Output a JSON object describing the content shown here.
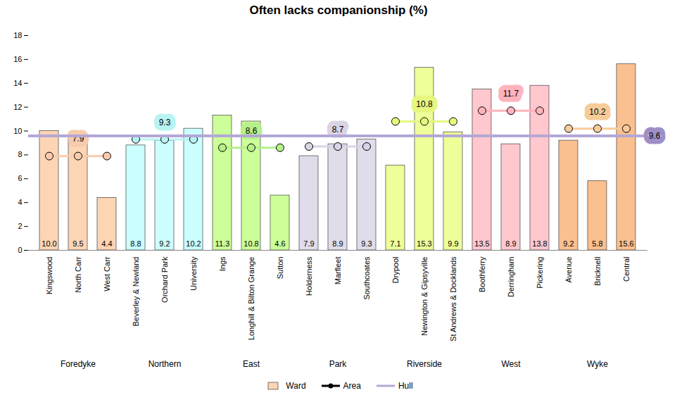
{
  "chart_data": {
    "type": "bar",
    "title": "Often lacks companionship (%)",
    "categories": [
      "Kingswood",
      "North Carr",
      "West Carr",
      "Beverley & Newland",
      "Orchard Park",
      "University",
      "Ings",
      "Longhill & Bilton Grange",
      "Sutton",
      "Holderness",
      "Marfleet",
      "Southcoates",
      "Drypool",
      "Newington & Gipsyville",
      "St Andrews & Docklands",
      "Boothferry",
      "Derringham",
      "Pickering",
      "Avenue",
      "Bricknell",
      "Central"
    ],
    "groups": [
      "Foredyke",
      "Foredyke",
      "Foredyke",
      "Northern",
      "Northern",
      "Northern",
      "East",
      "East",
      "East",
      "Park",
      "Park",
      "Park",
      "Riverside",
      "Riverside",
      "Riverside",
      "West",
      "West",
      "West",
      "Wyke",
      "Wyke",
      "Wyke"
    ],
    "series": [
      {
        "name": "Ward",
        "type": "bar",
        "data_labels": true,
        "values": [
          10.0,
          9.5,
          4.4,
          8.8,
          9.2,
          10.2,
          11.3,
          10.8,
          4.6,
          7.9,
          8.9,
          9.3,
          7.1,
          15.3,
          9.9,
          13.5,
          8.9,
          13.8,
          9.2,
          5.8,
          15.6
        ],
        "value_labels": [
          "10.0",
          "9.5",
          "4.4",
          "8.8",
          "9.2",
          "10.2",
          "11.3",
          "10.8",
          "4.6",
          "7.9",
          "8.9",
          "9.3",
          "7.1",
          "15.3",
          "9.9",
          "13.5",
          "8.9",
          "13.8",
          "9.2",
          "5.8",
          "15.6"
        ],
        "colors": [
          "#fcd5b5",
          "#fcd5b5",
          "#fcd5b5",
          "#ccffff",
          "#ccffff",
          "#ccffff",
          "#ccff99",
          "#ccff99",
          "#ccff99",
          "#e0dcea",
          "#e0dcea",
          "#e0dcea",
          "#eeff99",
          "#eeff99",
          "#eeff99",
          "#ffc7ce",
          "#ffc7ce",
          "#ffc7ce",
          "#fac090",
          "#fac090",
          "#fac090"
        ]
      },
      {
        "name": "Area",
        "type": "line",
        "marker": "circle",
        "color": "#000000",
        "data_labels": true,
        "values": [
          7.9,
          7.9,
          7.9,
          9.3,
          9.3,
          9.3,
          8.6,
          8.6,
          8.6,
          8.7,
          8.7,
          8.7,
          10.8,
          10.8,
          10.8,
          11.7,
          11.7,
          11.7,
          10.2,
          10.2,
          10.2
        ],
        "colors": [
          "#f8cbad",
          "#f8cbad",
          "#f8cbad",
          "#b7f4f4",
          "#b7f4f4",
          "#b7f4f4",
          "#b6f08a",
          "#b6f08a",
          "#b6f08a",
          "#d9d3e6",
          "#d9d3e6",
          "#d9d3e6",
          "#e6f77f",
          "#e6f77f",
          "#e6f77f",
          "#ffb3bd",
          "#ffb3bd",
          "#ffb3bd",
          "#f8cc9a",
          "#f8cc9a",
          "#f8cc9a"
        ]
      },
      {
        "name": "Hull",
        "type": "line",
        "color": "#b4a7d6",
        "data_labels": true,
        "values": [
          9.6,
          9.6,
          9.6,
          9.6,
          9.6,
          9.6,
          9.6,
          9.6,
          9.6,
          9.6,
          9.6,
          9.6,
          9.6,
          9.6,
          9.6,
          9.6,
          9.6,
          9.6,
          9.6,
          9.6,
          9.6
        ]
      }
    ],
    "ylim": [
      0,
      18
    ],
    "yticks": [
      0,
      2,
      4,
      6,
      8,
      10,
      12,
      14,
      16,
      18
    ],
    "grid": false,
    "legend": "bottom"
  }
}
